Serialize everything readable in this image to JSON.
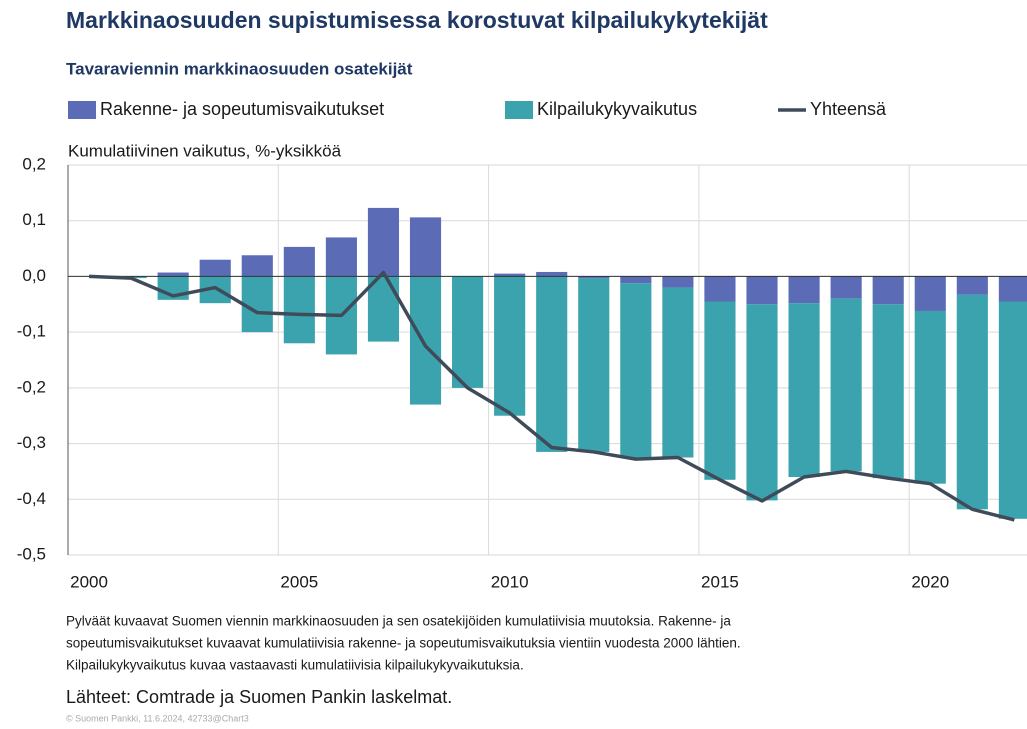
{
  "chart_data": {
    "type": "bar",
    "title": "Markkinaosuuden supistumisessa korostuvat kilpailukykytekijät",
    "subtitle": "Tavaraviennin markkinaosuuden osatekijät",
    "ylabel": "Kumulatiivinen vaikutus, %-yksikköä",
    "x": [
      2000,
      2001,
      2002,
      2003,
      2004,
      2005,
      2006,
      2007,
      2008,
      2009,
      2010,
      2011,
      2012,
      2013,
      2014,
      2015,
      2016,
      2017,
      2018,
      2019,
      2020,
      2021,
      2022
    ],
    "xlim": [
      1999.5,
      2022.3
    ],
    "xticks": [
      2000,
      2005,
      2010,
      2015,
      2020
    ],
    "ylim": [
      -0.5,
      0.2
    ],
    "yticks": [
      {
        "value": 0.2,
        "label": "0,2"
      },
      {
        "value": 0.1,
        "label": "0,1"
      },
      {
        "value": 0,
        "label": "0,0"
      },
      {
        "value": -0.1,
        "label": "-0,1"
      },
      {
        "value": -0.2,
        "label": "-0,2"
      },
      {
        "value": -0.3,
        "label": "-0,3"
      },
      {
        "value": -0.4,
        "label": "-0,4"
      },
      {
        "value": -0.5,
        "label": "-0,5"
      }
    ],
    "grid": true,
    "series": [
      {
        "name": "Rakenne- ja sopeutumisvaikutukset",
        "type": "bar",
        "color": "#5b6bb5",
        "values": [
          0,
          0,
          0.007,
          0.03,
          0.038,
          0.053,
          0.07,
          0.123,
          0.106,
          0,
          0.005,
          0.008,
          -0.003,
          -0.012,
          -0.02,
          -0.045,
          -0.05,
          -0.048,
          -0.04,
          -0.05,
          -0.062,
          -0.033,
          -0.045
        ]
      },
      {
        "name": "Kilpailukykyvaikutus",
        "type": "bar",
        "color": "#3ba3ad",
        "values": [
          0,
          -0.003,
          -0.042,
          -0.048,
          -0.1,
          -0.12,
          -0.14,
          -0.117,
          -0.23,
          -0.2,
          -0.25,
          -0.315,
          -0.312,
          -0.314,
          -0.305,
          -0.32,
          -0.352,
          -0.312,
          -0.31,
          -0.312,
          -0.31,
          -0.385,
          -0.39
        ]
      },
      {
        "name": "Yhteensä",
        "type": "line",
        "color": "#404b5a",
        "values": [
          0,
          -0.003,
          -0.035,
          -0.02,
          -0.065,
          -0.068,
          -0.07,
          0.007,
          -0.125,
          -0.2,
          -0.245,
          -0.307,
          -0.315,
          -0.328,
          -0.325,
          -0.365,
          -0.403,
          -0.36,
          -0.35,
          -0.362,
          -0.372,
          -0.418,
          -0.437
        ]
      }
    ],
    "notes": [
      "Pylväät kuvaavat Suomen viennin markkinaosuuden ja sen osatekijöiden kumulatiivisia muutoksia. Rakenne- ja",
      "sopeutumisvaikutukset kuvaavat kumulatiivisia rakenne- ja sopeutumisvaikutuksia vientiin vuodesta 2000 lähtien.",
      "Kilpailukykyvaikutus kuvaa vastaavasti kumulatiivisia kilpailukykyvaikutuksia."
    ],
    "source": "Lähteet: Comtrade ja Suomen Pankin laskelmat.",
    "copyright": "© Suomen Pankki, 11.6.2024, 42733@Chart3"
  }
}
